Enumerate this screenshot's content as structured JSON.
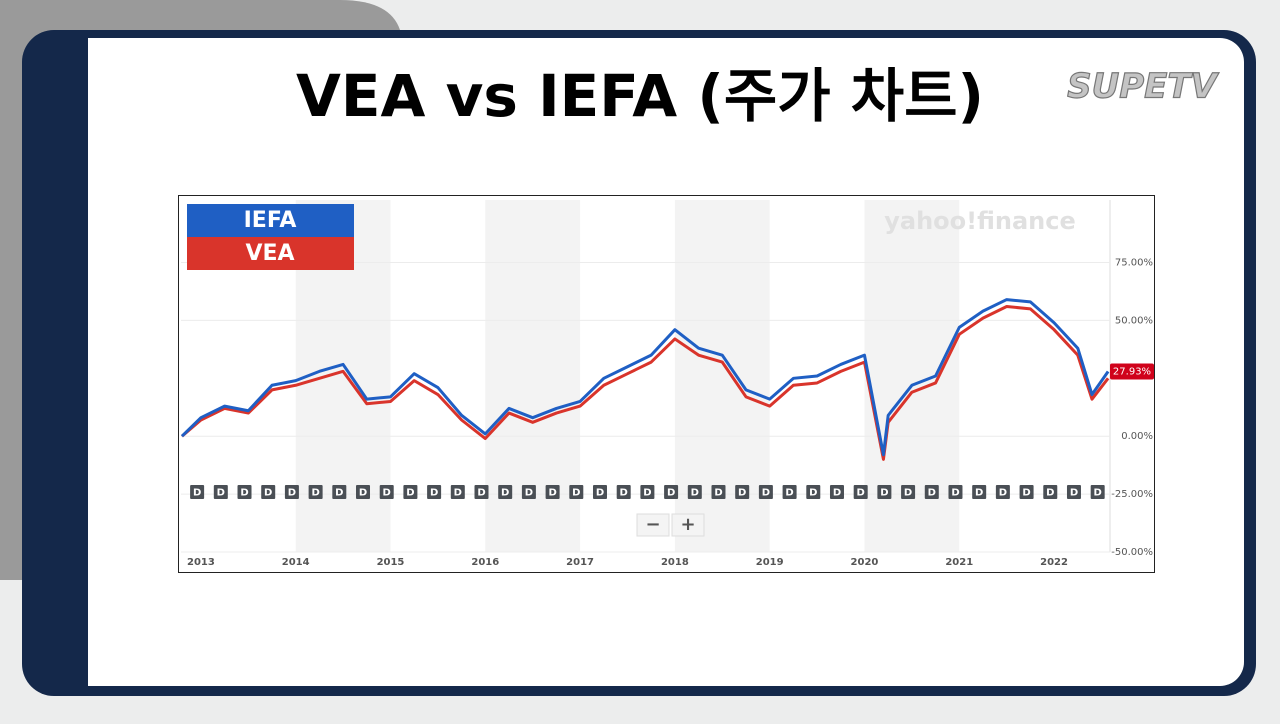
{
  "slide_title": "VEA vs IEFA (주가 차트)",
  "logo": "SUPETV",
  "chart_data": {
    "type": "line",
    "watermark": "yahoo!finance",
    "x": [
      2012.8,
      2013,
      2013.25,
      2013.5,
      2013.75,
      2014,
      2014.25,
      2014.5,
      2014.75,
      2015,
      2015.25,
      2015.5,
      2015.75,
      2016,
      2016.25,
      2016.5,
      2016.75,
      2017,
      2017.25,
      2017.5,
      2017.75,
      2018,
      2018.25,
      2018.5,
      2018.75,
      2019,
      2019.25,
      2019.5,
      2019.75,
      2020,
      2020.2,
      2020.25,
      2020.5,
      2020.75,
      2021,
      2021.25,
      2021.5,
      2021.75,
      2022,
      2022.25,
      2022.4,
      2022.57
    ],
    "series": [
      {
        "name": "VEA",
        "color": "#d9342b",
        "values": [
          0,
          7,
          12,
          10,
          20,
          22,
          25,
          28,
          14,
          15,
          24,
          18,
          7,
          -1,
          10,
          6,
          10,
          13,
          22,
          27,
          32,
          42,
          35,
          32,
          17,
          13,
          22,
          23,
          28,
          32,
          -10,
          6,
          19,
          23,
          44,
          51,
          56,
          55,
          46,
          35,
          16,
          25
        ]
      },
      {
        "name": "IEFA",
        "color": "#1f5fc4",
        "values": [
          0,
          8,
          13,
          11,
          22,
          24,
          28,
          31,
          16,
          17,
          27,
          21,
          9,
          1,
          12,
          8,
          12,
          15,
          25,
          30,
          35,
          46,
          38,
          35,
          20,
          16,
          25,
          26,
          31,
          35,
          -8,
          9,
          22,
          26,
          47,
          54,
          59,
          58,
          49,
          38,
          18,
          27.93
        ],
        "value_labels": [
          null,
          null,
          null,
          null,
          null,
          null,
          null,
          null,
          null,
          null,
          null,
          null,
          null,
          null,
          null,
          null,
          null,
          null,
          null,
          null,
          null,
          null,
          null,
          null,
          null,
          null,
          null,
          null,
          null,
          null,
          null,
          null,
          null,
          null,
          null,
          null,
          null,
          null,
          null,
          null,
          null,
          "27.93%"
        ]
      }
    ],
    "legend_order": [
      1,
      0
    ],
    "xlim": [
      2012.79,
      2022.59
    ],
    "xticks": [
      2013,
      2014,
      2015,
      2016,
      2017,
      2018,
      2019,
      2020,
      2021,
      2022
    ],
    "ylim": [
      -50,
      102
    ],
    "yticks": [
      {
        "value": 75,
        "label": "75.00%"
      },
      {
        "value": 50,
        "label": "50.00%"
      },
      {
        "value": 0,
        "label": "0.00%"
      },
      {
        "value": -25,
        "label": "-25.00%"
      },
      {
        "value": -50,
        "label": "-50.00%"
      }
    ],
    "grid": true,
    "dividend_label": "D",
    "dividend_x": [
      2012.96,
      2013.21,
      2013.46,
      2013.71,
      2013.96,
      2014.21,
      2014.46,
      2014.71,
      2014.96,
      2015.21,
      2015.46,
      2015.71,
      2015.96,
      2016.21,
      2016.46,
      2016.71,
      2016.96,
      2017.21,
      2017.46,
      2017.71,
      2017.96,
      2018.21,
      2018.46,
      2018.71,
      2018.96,
      2019.21,
      2019.46,
      2019.71,
      2019.96,
      2020.21,
      2020.46,
      2020.71,
      2020.96,
      2021.21,
      2021.46,
      2021.71,
      2021.96,
      2022.21,
      2022.46
    ],
    "zoom_controls": [
      "−",
      "+"
    ]
  }
}
